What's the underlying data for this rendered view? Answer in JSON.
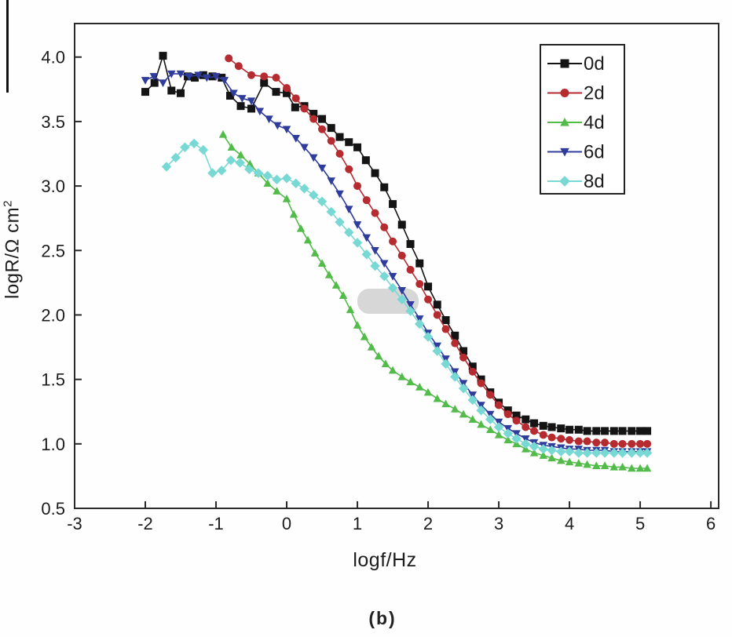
{
  "figure": {
    "caption": "(b)",
    "background": "#fefefe"
  },
  "chart_data": {
    "type": "line",
    "title": "",
    "xlabel": "logf/Hz",
    "ylabel": "logR/Ω cm²",
    "ylabel_base": "logR/Ω cm",
    "ylabel_sup": "2",
    "xlim": [
      -3,
      6.11
    ],
    "ylim": [
      0.5,
      4.26
    ],
    "xticks": [
      -3,
      -2,
      -1,
      0,
      1,
      2,
      3,
      4,
      5,
      6
    ],
    "yticks": [
      0.5,
      1.0,
      1.5,
      2.0,
      2.5,
      3.0,
      3.5,
      4.0
    ],
    "grid": false,
    "legend_position": "top-right",
    "frame_color": "#2a2a2a",
    "series": [
      {
        "name": "0d",
        "color": "#141414",
        "marker": "square",
        "points": [
          [
            -2.0,
            3.73
          ],
          [
            -1.87,
            3.8
          ],
          [
            -1.75,
            4.01
          ],
          [
            -1.63,
            3.74
          ],
          [
            -1.5,
            3.72
          ],
          [
            -1.4,
            3.85
          ],
          [
            -1.3,
            3.84
          ],
          [
            -1.18,
            3.86
          ],
          [
            -1.05,
            3.85
          ],
          [
            -0.92,
            3.84
          ],
          [
            -0.8,
            3.7
          ],
          [
            -0.65,
            3.62
          ],
          [
            -0.5,
            3.6
          ],
          [
            -0.32,
            3.8
          ],
          [
            -0.15,
            3.73
          ],
          [
            0.0,
            3.72
          ],
          [
            0.12,
            3.61
          ],
          [
            0.25,
            3.62
          ],
          [
            0.38,
            3.56
          ],
          [
            0.5,
            3.52
          ],
          [
            0.63,
            3.45
          ],
          [
            0.75,
            3.38
          ],
          [
            0.88,
            3.34
          ],
          [
            1.0,
            3.3
          ],
          [
            1.12,
            3.2
          ],
          [
            1.25,
            3.1
          ],
          [
            1.38,
            2.99
          ],
          [
            1.5,
            2.86
          ],
          [
            1.63,
            2.7
          ],
          [
            1.75,
            2.55
          ],
          [
            1.88,
            2.4
          ],
          [
            2.0,
            2.22
          ],
          [
            2.13,
            2.08
          ],
          [
            2.25,
            1.96
          ],
          [
            2.38,
            1.84
          ],
          [
            2.5,
            1.72
          ],
          [
            2.63,
            1.6
          ],
          [
            2.75,
            1.5
          ],
          [
            2.88,
            1.4
          ],
          [
            3.0,
            1.32
          ],
          [
            3.13,
            1.26
          ],
          [
            3.25,
            1.22
          ],
          [
            3.38,
            1.19
          ],
          [
            3.5,
            1.16
          ],
          [
            3.63,
            1.14
          ],
          [
            3.75,
            1.13
          ],
          [
            3.88,
            1.12
          ],
          [
            4.0,
            1.11
          ],
          [
            4.13,
            1.11
          ],
          [
            4.25,
            1.1
          ],
          [
            4.38,
            1.1
          ],
          [
            4.5,
            1.1
          ],
          [
            4.63,
            1.1
          ],
          [
            4.75,
            1.1
          ],
          [
            4.88,
            1.1
          ],
          [
            5.0,
            1.1
          ],
          [
            5.1,
            1.1
          ]
        ]
      },
      {
        "name": "2d",
        "color": "#b62b30",
        "marker": "circle",
        "points": [
          [
            -0.82,
            3.99
          ],
          [
            -0.68,
            3.93
          ],
          [
            -0.5,
            3.86
          ],
          [
            -0.32,
            3.85
          ],
          [
            -0.15,
            3.84
          ],
          [
            0.0,
            3.76
          ],
          [
            0.13,
            3.68
          ],
          [
            0.25,
            3.6
          ],
          [
            0.38,
            3.52
          ],
          [
            0.5,
            3.44
          ],
          [
            0.63,
            3.35
          ],
          [
            0.75,
            3.25
          ],
          [
            0.88,
            3.13
          ],
          [
            1.0,
            3.0
          ],
          [
            1.13,
            2.89
          ],
          [
            1.25,
            2.79
          ],
          [
            1.38,
            2.68
          ],
          [
            1.5,
            2.57
          ],
          [
            1.63,
            2.46
          ],
          [
            1.75,
            2.35
          ],
          [
            1.88,
            2.24
          ],
          [
            2.0,
            2.12
          ],
          [
            2.13,
            2.0
          ],
          [
            2.25,
            1.89
          ],
          [
            2.38,
            1.78
          ],
          [
            2.5,
            1.67
          ],
          [
            2.63,
            1.56
          ],
          [
            2.75,
            1.47
          ],
          [
            2.88,
            1.38
          ],
          [
            3.0,
            1.3
          ],
          [
            3.13,
            1.23
          ],
          [
            3.25,
            1.18
          ],
          [
            3.38,
            1.13
          ],
          [
            3.5,
            1.1
          ],
          [
            3.63,
            1.07
          ],
          [
            3.75,
            1.05
          ],
          [
            3.88,
            1.04
          ],
          [
            4.0,
            1.03
          ],
          [
            4.13,
            1.02
          ],
          [
            4.25,
            1.02
          ],
          [
            4.38,
            1.01
          ],
          [
            4.5,
            1.01
          ],
          [
            4.63,
            1.0
          ],
          [
            4.75,
            1.0
          ],
          [
            4.88,
            1.0
          ],
          [
            5.0,
            1.0
          ],
          [
            5.1,
            1.0
          ]
        ]
      },
      {
        "name": "4d",
        "color": "#53bb4a",
        "marker": "triangle-up",
        "points": [
          [
            -0.9,
            3.4
          ],
          [
            -0.78,
            3.3
          ],
          [
            -0.65,
            3.24
          ],
          [
            -0.52,
            3.17
          ],
          [
            -0.4,
            3.1
          ],
          [
            -0.27,
            3.02
          ],
          [
            -0.14,
            2.96
          ],
          [
            0.0,
            2.9
          ],
          [
            0.1,
            2.78
          ],
          [
            0.2,
            2.67
          ],
          [
            0.3,
            2.58
          ],
          [
            0.4,
            2.48
          ],
          [
            0.5,
            2.4
          ],
          [
            0.6,
            2.31
          ],
          [
            0.7,
            2.23
          ],
          [
            0.8,
            2.15
          ],
          [
            0.9,
            2.04
          ],
          [
            1.0,
            1.92
          ],
          [
            1.1,
            1.83
          ],
          [
            1.2,
            1.75
          ],
          [
            1.3,
            1.68
          ],
          [
            1.4,
            1.62
          ],
          [
            1.5,
            1.57
          ],
          [
            1.63,
            1.52
          ],
          [
            1.75,
            1.48
          ],
          [
            1.88,
            1.44
          ],
          [
            2.0,
            1.4
          ],
          [
            2.13,
            1.35
          ],
          [
            2.25,
            1.31
          ],
          [
            2.38,
            1.27
          ],
          [
            2.5,
            1.23
          ],
          [
            2.63,
            1.19
          ],
          [
            2.75,
            1.15
          ],
          [
            2.88,
            1.11
          ],
          [
            3.0,
            1.07
          ],
          [
            3.13,
            1.03
          ],
          [
            3.25,
            1.0
          ],
          [
            3.38,
            0.96
          ],
          [
            3.5,
            0.93
          ],
          [
            3.63,
            0.91
          ],
          [
            3.75,
            0.89
          ],
          [
            3.88,
            0.87
          ],
          [
            4.0,
            0.86
          ],
          [
            4.13,
            0.85
          ],
          [
            4.25,
            0.84
          ],
          [
            4.38,
            0.83
          ],
          [
            4.5,
            0.83
          ],
          [
            4.63,
            0.82
          ],
          [
            4.75,
            0.82
          ],
          [
            4.88,
            0.81
          ],
          [
            5.0,
            0.81
          ],
          [
            5.1,
            0.81
          ]
        ]
      },
      {
        "name": "6d",
        "color": "#2f3c9c",
        "marker": "triangle-down",
        "points": [
          [
            -2.0,
            3.82
          ],
          [
            -1.88,
            3.85
          ],
          [
            -1.75,
            3.8
          ],
          [
            -1.63,
            3.87
          ],
          [
            -1.5,
            3.87
          ],
          [
            -1.38,
            3.85
          ],
          [
            -1.25,
            3.86
          ],
          [
            -1.13,
            3.84
          ],
          [
            -1.0,
            3.85
          ],
          [
            -0.88,
            3.82
          ],
          [
            -0.75,
            3.72
          ],
          [
            -0.63,
            3.68
          ],
          [
            -0.5,
            3.66
          ],
          [
            -0.38,
            3.58
          ],
          [
            -0.25,
            3.52
          ],
          [
            -0.13,
            3.47
          ],
          [
            0.0,
            3.44
          ],
          [
            0.13,
            3.37
          ],
          [
            0.25,
            3.3
          ],
          [
            0.38,
            3.22
          ],
          [
            0.5,
            3.14
          ],
          [
            0.63,
            3.04
          ],
          [
            0.75,
            2.94
          ],
          [
            0.88,
            2.82
          ],
          [
            1.0,
            2.7
          ],
          [
            1.13,
            2.6
          ],
          [
            1.25,
            2.5
          ],
          [
            1.38,
            2.4
          ],
          [
            1.5,
            2.3
          ],
          [
            1.63,
            2.19
          ],
          [
            1.75,
            2.08
          ],
          [
            1.88,
            1.97
          ],
          [
            2.0,
            1.86
          ],
          [
            2.13,
            1.76
          ],
          [
            2.25,
            1.66
          ],
          [
            2.38,
            1.56
          ],
          [
            2.5,
            1.47
          ],
          [
            2.63,
            1.38
          ],
          [
            2.75,
            1.3
          ],
          [
            2.88,
            1.23
          ],
          [
            3.0,
            1.17
          ],
          [
            3.13,
            1.12
          ],
          [
            3.25,
            1.08
          ],
          [
            3.38,
            1.04
          ],
          [
            3.5,
            1.01
          ],
          [
            3.63,
            0.99
          ],
          [
            3.75,
            0.98
          ],
          [
            3.88,
            0.97
          ],
          [
            4.0,
            0.96
          ],
          [
            4.13,
            0.96
          ],
          [
            4.25,
            0.95
          ],
          [
            4.38,
            0.95
          ],
          [
            4.5,
            0.95
          ],
          [
            4.63,
            0.94
          ],
          [
            4.75,
            0.94
          ],
          [
            4.88,
            0.94
          ],
          [
            5.0,
            0.94
          ],
          [
            5.1,
            0.94
          ]
        ]
      },
      {
        "name": "8d",
        "color": "#78d8d4",
        "marker": "diamond",
        "points": [
          [
            -1.7,
            3.15
          ],
          [
            -1.57,
            3.22
          ],
          [
            -1.44,
            3.3
          ],
          [
            -1.31,
            3.33
          ],
          [
            -1.18,
            3.28
          ],
          [
            -1.05,
            3.1
          ],
          [
            -0.92,
            3.12
          ],
          [
            -0.79,
            3.2
          ],
          [
            -0.66,
            3.18
          ],
          [
            -0.53,
            3.13
          ],
          [
            -0.4,
            3.1
          ],
          [
            -0.27,
            3.08
          ],
          [
            -0.14,
            3.05
          ],
          [
            0.0,
            3.06
          ],
          [
            0.13,
            3.02
          ],
          [
            0.25,
            2.98
          ],
          [
            0.38,
            2.93
          ],
          [
            0.5,
            2.88
          ],
          [
            0.63,
            2.8
          ],
          [
            0.75,
            2.72
          ],
          [
            0.88,
            2.64
          ],
          [
            1.0,
            2.56
          ],
          [
            1.13,
            2.47
          ],
          [
            1.25,
            2.38
          ],
          [
            1.38,
            2.3
          ],
          [
            1.5,
            2.21
          ],
          [
            1.63,
            2.12
          ],
          [
            1.75,
            2.03
          ],
          [
            1.88,
            1.93
          ],
          [
            2.0,
            1.83
          ],
          [
            2.13,
            1.72
          ],
          [
            2.25,
            1.62
          ],
          [
            2.38,
            1.52
          ],
          [
            2.5,
            1.43
          ],
          [
            2.63,
            1.34
          ],
          [
            2.75,
            1.26
          ],
          [
            2.88,
            1.19
          ],
          [
            3.0,
            1.13
          ],
          [
            3.13,
            1.08
          ],
          [
            3.25,
            1.04
          ],
          [
            3.38,
            1.0
          ],
          [
            3.5,
            0.98
          ],
          [
            3.63,
            0.96
          ],
          [
            3.75,
            0.95
          ],
          [
            3.88,
            0.94
          ],
          [
            4.0,
            0.94
          ],
          [
            4.13,
            0.93
          ],
          [
            4.25,
            0.93
          ],
          [
            4.38,
            0.93
          ],
          [
            4.5,
            0.93
          ],
          [
            4.63,
            0.93
          ],
          [
            4.75,
            0.93
          ],
          [
            4.88,
            0.93
          ],
          [
            5.0,
            0.93
          ],
          [
            5.1,
            0.93
          ]
        ]
      }
    ]
  }
}
